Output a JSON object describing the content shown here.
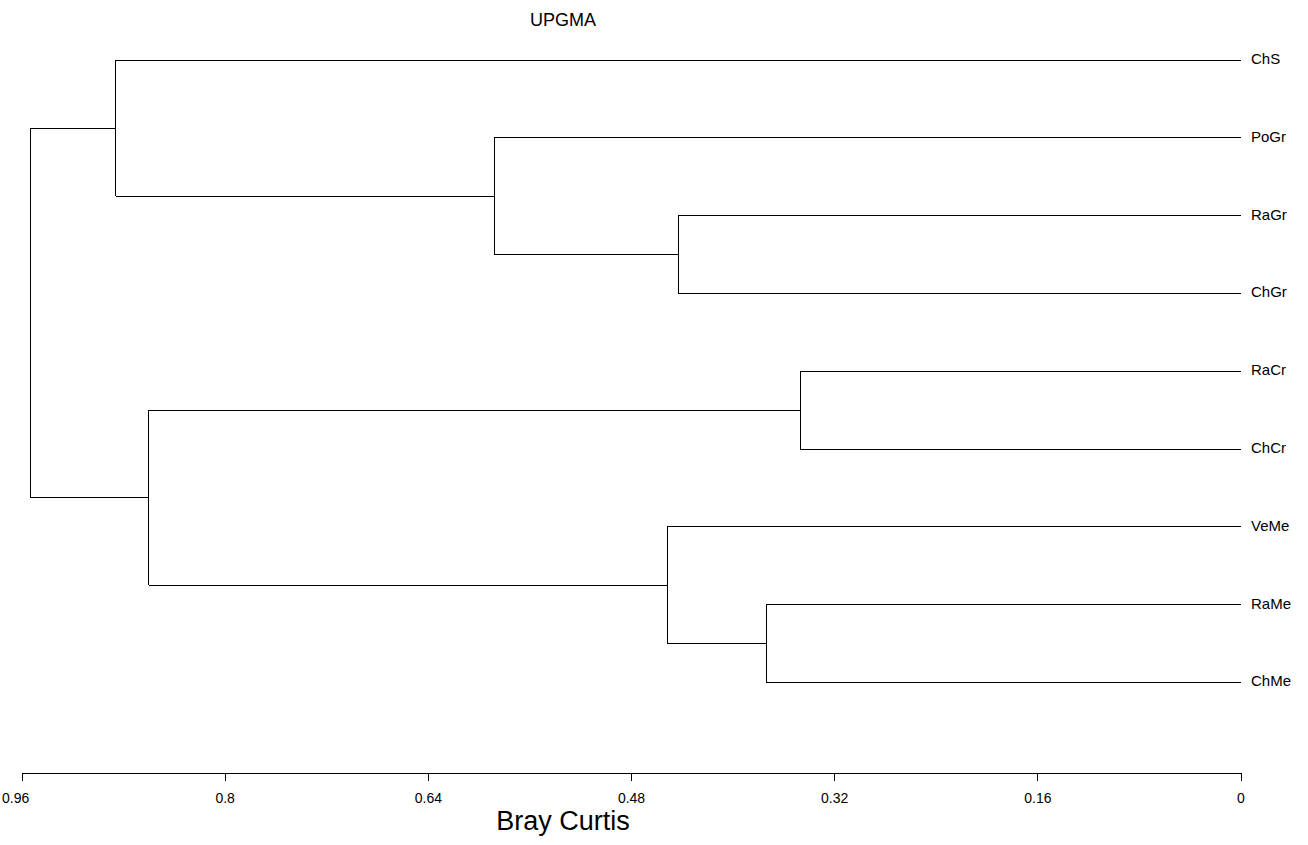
{
  "chart_data": {
    "type": "dendrogram",
    "title": "UPGMA",
    "x_label": "Bray Curtis",
    "xlim": [
      0.96,
      0
    ],
    "xticks": [
      0.96,
      0.8,
      0.64,
      0.48,
      0.32,
      0.16,
      0
    ],
    "tree": {
      "height": 0.953,
      "children": [
        {
          "height": 0.886,
          "children": [
            {
              "label": "ChS"
            },
            {
              "height": 0.588,
              "children": [
                {
                  "label": "PoGr"
                },
                {
                  "height": 0.443,
                  "children": [
                    {
                      "label": "RaGr"
                    },
                    {
                      "label": "ChGr"
                    }
                  ]
                }
              ]
            }
          ]
        },
        {
          "height": 0.86,
          "children": [
            {
              "height": 0.347,
              "children": [
                {
                  "label": "RaCr"
                },
                {
                  "label": "ChCr"
                }
              ]
            },
            {
              "height": 0.452,
              "children": [
                {
                  "label": "VeMe"
                },
                {
                  "height": 0.374,
                  "children": [
                    {
                      "label": "RaMe"
                    },
                    {
                      "label": "ChMe"
                    }
                  ]
                }
              ]
            }
          ]
        }
      ]
    }
  }
}
